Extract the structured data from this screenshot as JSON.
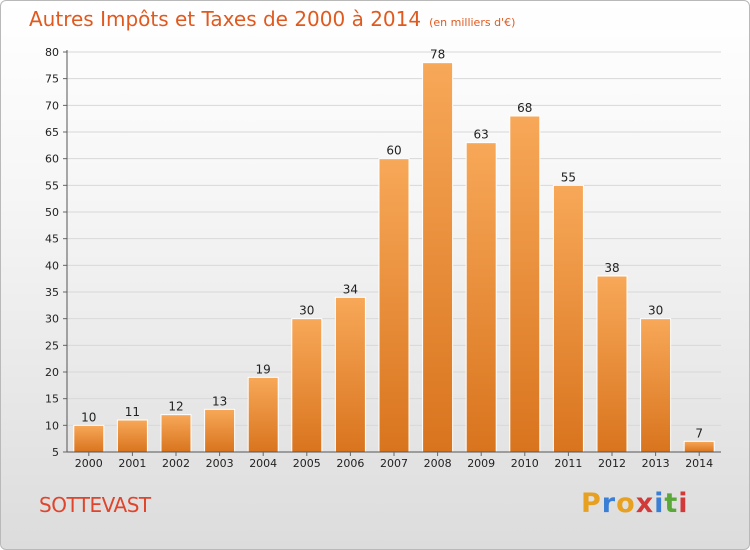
{
  "title": {
    "main": "Autres Impôts et Taxes de 2000 à 2014",
    "unit": "(en milliers d'€)"
  },
  "location": "SOTTEVAST",
  "logo": {
    "letters": [
      "P",
      "r",
      "o",
      "x",
      "i",
      "t",
      "i"
    ],
    "colors": [
      "#e8a020",
      "#3a7fd5",
      "#e8a020",
      "#d23a3a",
      "#3a7fd5",
      "#5aa83a",
      "#d23a3a"
    ]
  },
  "colors": {
    "bar_light": "#f7a858",
    "bar_dark": "#d9741e",
    "title": "#e05a20",
    "location": "#e0442a"
  },
  "chart_data": {
    "type": "bar",
    "categories": [
      "2000",
      "2001",
      "2002",
      "2003",
      "2004",
      "2005",
      "2006",
      "2007",
      "2008",
      "2009",
      "2010",
      "2011",
      "2012",
      "2013",
      "2014"
    ],
    "values": [
      10,
      11,
      12,
      13,
      19,
      30,
      34,
      60,
      78,
      63,
      68,
      55,
      38,
      30,
      7
    ],
    "labels": [
      "10",
      "11",
      "12",
      "13",
      "19",
      "30",
      "34",
      "60",
      "78",
      "63",
      "68",
      "55",
      "38",
      "30",
      "7"
    ],
    "yticks": [
      "5",
      "10",
      "15",
      "20",
      "25",
      "30",
      "35",
      "40",
      "45",
      "50",
      "55",
      "60",
      "65",
      "70",
      "75",
      "80"
    ],
    "title": "Autres Impôts et Taxes de 2000 à 2014",
    "xlabel": "",
    "ylabel": "",
    "ylim": [
      5,
      80
    ],
    "grid": true,
    "legend": "none"
  }
}
